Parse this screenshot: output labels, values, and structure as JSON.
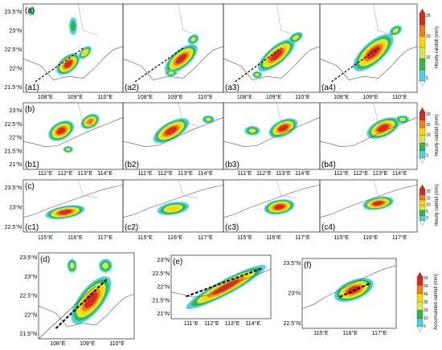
{
  "chart_data": {
    "type": "heatmap",
    "description_free": true,
    "rows": [
      {
        "id": "a",
        "row_label": "(a)",
        "panel_labels": [
          "(a1)",
          "(a2)",
          "(a3)",
          "(a4)"
        ],
        "lon_ticks": [
          "108°E",
          "109°E",
          "110°E"
        ],
        "lat_ticks": [
          "23.5°N",
          "23°N",
          "22.5°N",
          "22°N",
          "21.5°N"
        ],
        "lon_range": [
          107.3,
          110.9
        ],
        "lat_range": [
          21.2,
          23.9
        ],
        "colorbar": {
          "label": "Hourly rainfall (mm)",
          "ticks": [
            "25",
            "20",
            "10",
            "5"
          ]
        }
      },
      {
        "id": "b",
        "row_label": "(b)",
        "panel_labels": [
          "(b1)",
          "(b2)",
          "(b3)",
          "(b4)"
        ],
        "lon_ticks": [
          "111°E",
          "112°E",
          "113°E",
          "114°E"
        ],
        "lat_ticks": [
          "23°N",
          "22.5°N",
          "22°N",
          "21.5°N",
          "21°N"
        ],
        "lon_range": [
          110.7,
          114.1
        ],
        "lat_range": [
          21.0,
          23.0
        ],
        "colorbar": {
          "label": "Hourly rainfall (mm)",
          "ticks": [
            "20",
            "15",
            "10",
            "5",
            "3"
          ]
        }
      },
      {
        "id": "c",
        "row_label": "(c)",
        "panel_labels": [
          "(c1)",
          "(c2)",
          "(c3)",
          "(c4)"
        ],
        "lon_ticks": [
          "115°E",
          "116°E",
          "117°E"
        ],
        "lat_ticks": [
          "23.5°N",
          "23°N",
          "22.5°N"
        ],
        "lon_range": [
          114.6,
          117.6
        ],
        "lat_range": [
          22.3,
          23.9
        ],
        "colorbar": {
          "label": "Hourly rainfall (mm)",
          "ticks": [
            "20",
            "15",
            "10",
            "5",
            "3"
          ]
        }
      }
    ],
    "bottom_panels": [
      {
        "id": "d",
        "panel_label": "(d)",
        "lon_ticks": [
          "108°E",
          "109°E",
          "110°E"
        ],
        "lat_ticks": [
          "23.5°N",
          "23°N",
          "22.5°N",
          "22°N",
          "21.5°N"
        ]
      },
      {
        "id": "e",
        "panel_label": "(e)",
        "lon_ticks": [
          "111°E",
          "112°E",
          "113°E",
          "114°E"
        ],
        "lat_ticks": [
          "23°N",
          "22.5°N",
          "22°N",
          "21.5°N",
          "21°N"
        ]
      },
      {
        "id": "f",
        "panel_label": "(f)",
        "lon_ticks": [
          "115°E",
          "116°E",
          "117°E"
        ],
        "lat_ticks": [
          "23.5°N",
          "23°N",
          "22.5°N"
        ]
      }
    ],
    "accumulated_colorbar": {
      "label": "Accumulated rainfall (mm)",
      "ticks": [
        "60",
        "50",
        "40",
        "30",
        "20",
        "10",
        "5"
      ]
    },
    "rainfall_colors": [
      "#4fd0e8",
      "#35b44a",
      "#d7e84a",
      "#ffd700",
      "#f07d1f",
      "#d42d1e"
    ]
  }
}
